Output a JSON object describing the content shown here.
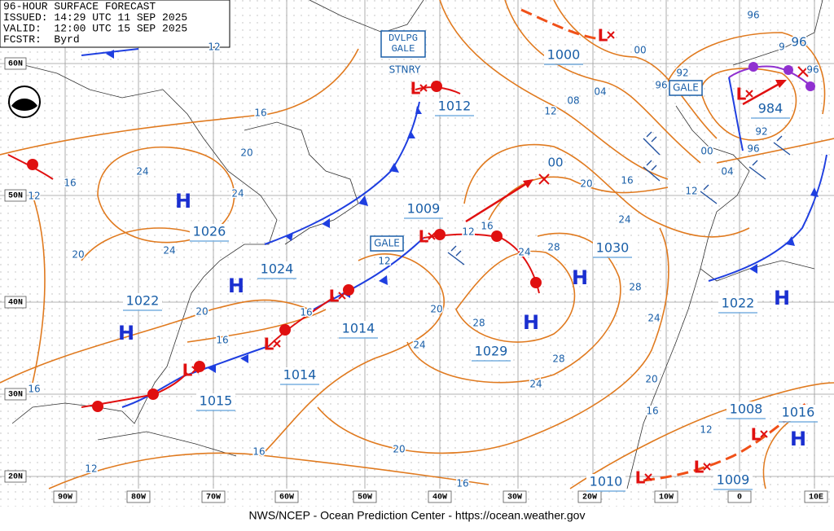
{
  "header": {
    "lines": [
      "96-HOUR SURFACE FORECAST",
      "ISSUED: 14:29 UTC 11 SEP 2025",
      "VALID:  12:00 UTC 15 SEP 2025",
      "FCSTR:  Byrd"
    ]
  },
  "latitude_labels": [
    "60N",
    "50N",
    "40N",
    "30N",
    "20N"
  ],
  "longitude_labels": [
    "90W",
    "80W",
    "70W",
    "60W",
    "50W",
    "40W",
    "30W",
    "20W",
    "10W",
    "0",
    "10E"
  ],
  "pressure_centers": [
    {
      "symbol": "H",
      "value": "1026"
    },
    {
      "symbol": "H",
      "value": "1024"
    },
    {
      "symbol": "H",
      "value": "1022"
    },
    {
      "symbol": "L",
      "value": "1015"
    },
    {
      "symbol": "L",
      "value": "1014"
    },
    {
      "symbol": "L",
      "value": "1014"
    },
    {
      "symbol": "L",
      "value": "1009"
    },
    {
      "symbol": "L",
      "value": "1012"
    },
    {
      "symbol": "L",
      "value": "1000"
    },
    {
      "symbol": "L",
      "value": "984"
    },
    {
      "symbol": "H",
      "value": "1030"
    },
    {
      "symbol": "H",
      "value": "1029"
    },
    {
      "symbol": "H",
      "value": "1022"
    },
    {
      "symbol": "L",
      "value": "1008"
    },
    {
      "symbol": "H",
      "value": "1016"
    },
    {
      "symbol": "L",
      "value": "1010"
    },
    {
      "symbol": "L",
      "value": "1009"
    }
  ],
  "isobar_labels": [
    "16",
    "20",
    "24",
    "24",
    "12",
    "16",
    "20",
    "24",
    "20",
    "16",
    "16",
    "12",
    "16",
    "12",
    "16",
    "20",
    "16",
    "24",
    "20",
    "28",
    "28",
    "24",
    "24",
    "28",
    "28",
    "24",
    "20",
    "16",
    "12",
    "12",
    "16",
    "20",
    "24",
    "16",
    "12",
    "08",
    "04",
    "00",
    "96",
    "96",
    "96",
    "92",
    "92",
    "96",
    "00",
    "04",
    "12",
    "96",
    "9",
    "12",
    "00"
  ],
  "annotations": [
    {
      "lines": [
        "DVLPG",
        "GALE"
      ]
    },
    {
      "text": "STNRY"
    },
    {
      "text": "GALE"
    },
    {
      "text": "GALE"
    }
  ],
  "footer": "NWS/NCEP - Ocean Prediction Center - https://ocean.weather.gov"
}
